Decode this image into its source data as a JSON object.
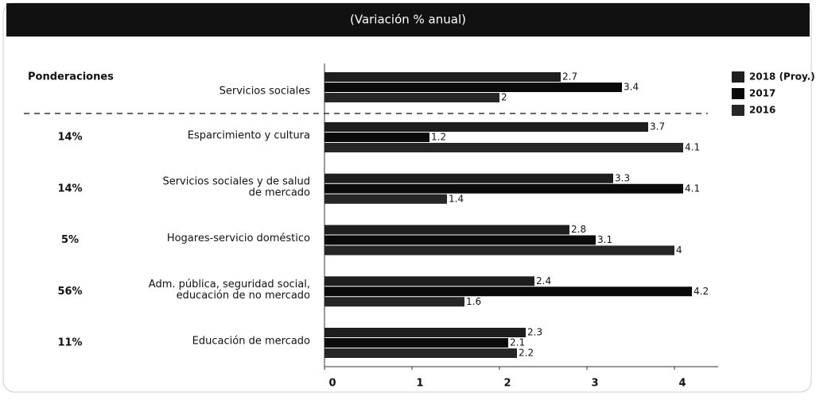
{
  "chart_data": {
    "type": "hbar",
    "title": "(Variación % anual)",
    "weights_title": "Ponderaciones",
    "weights": [
      null,
      "14%",
      "14%",
      "5%",
      "56%",
      "11%"
    ],
    "categories": [
      [
        "Servicios sociales"
      ],
      [
        "Esparcimiento y cultura"
      ],
      [
        "Servicios sociales y de salud",
        "de mercado"
      ],
      [
        "Hogares-servicio doméstico"
      ],
      [
        "Adm. pública, seguridad social,",
        "educación de no mercado"
      ],
      [
        "Educación de mercado"
      ]
    ],
    "series": [
      {
        "name": "2018 (Proy.)",
        "color": "#1e1e1e",
        "values": [
          2.7,
          3.7,
          3.3,
          2.8,
          2.4,
          2.3
        ]
      },
      {
        "name": "2017",
        "color": "#0a0a0a",
        "values": [
          3.4,
          1.2,
          4.1,
          3.1,
          4.2,
          2.1
        ]
      },
      {
        "name": "2016",
        "color": "#262626",
        "values": [
          2.0,
          4.1,
          1.4,
          4.0,
          1.6,
          2.2
        ]
      }
    ],
    "xlim": [
      0,
      4.5
    ],
    "xticks": [
      0,
      1,
      2,
      3,
      4
    ],
    "legend": "top-right"
  }
}
